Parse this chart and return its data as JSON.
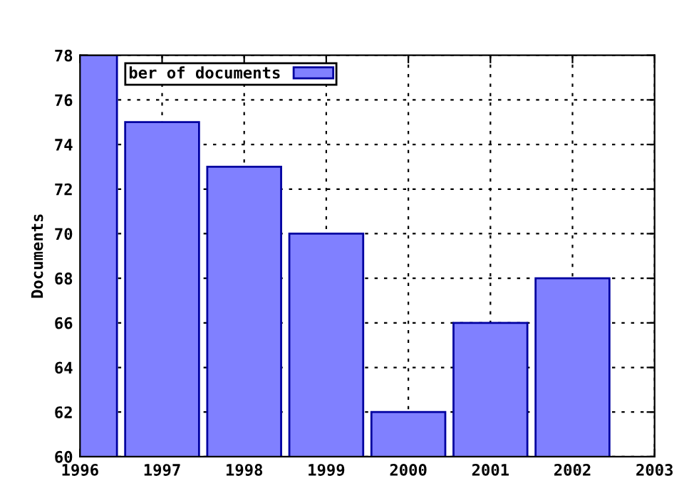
{
  "chart_data": {
    "type": "bar",
    "ylabel": "Documents",
    "x": [
      1996,
      1997,
      1998,
      1999,
      2000,
      2001,
      2002
    ],
    "series": [
      {
        "name": "ber of documents",
        "color": "#8080ff",
        "values": [
          78,
          75,
          73,
          70,
          62,
          66,
          68
        ]
      }
    ],
    "xlim": [
      1996,
      2003
    ],
    "xticks": [
      1996,
      1997,
      1998,
      1999,
      2000,
      2001,
      2002,
      2003
    ],
    "ylim": [
      60,
      78
    ],
    "yticks": [
      60,
      62,
      64,
      66,
      68,
      70,
      72,
      74,
      76,
      78
    ],
    "grid": true,
    "legend": "top left"
  }
}
